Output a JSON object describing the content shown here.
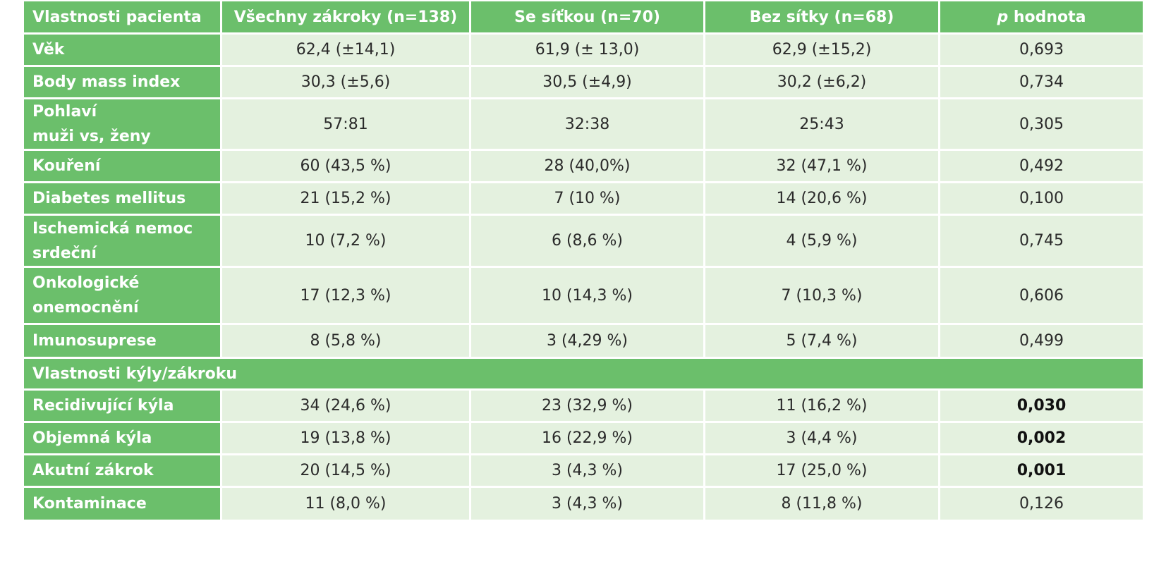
{
  "table": {
    "headers": [
      "Vlastnosti pacienta",
      "Všechny zákroky (n=138)",
      "Se síťkou (n=70)",
      "Bez sítky (n=68)"
    ],
    "p_header_italic": "p",
    "p_header_rest": " hodnota",
    "rows": [
      {
        "label": [
          "Věk"
        ],
        "cells": [
          "62,4 (±14,1)",
          "61,9 (± 13,0)",
          "62,9 (±15,2)",
          "0,693"
        ],
        "p_bold": false
      },
      {
        "label": [
          "Body mass index"
        ],
        "cells": [
          "30,3 (±5,6)",
          "30,5 (±4,9)",
          "30,2 (±6,2)",
          "0,734"
        ],
        "p_bold": false
      },
      {
        "label": [
          "Pohlaví",
          "muži vs, ženy"
        ],
        "cells": [
          "57:81",
          "32:38",
          "25:43",
          "0,305"
        ],
        "p_bold": false
      },
      {
        "label": [
          "Kouření"
        ],
        "cells": [
          "60 (43,5 %)",
          "28 (40,0%)",
          "32 (47,1 %)",
          "0,492"
        ],
        "p_bold": false
      },
      {
        "label": [
          "Diabetes mellitus"
        ],
        "cells": [
          "21 (15,2 %)",
          "7 (10  %)",
          "14 (20,6 %)",
          "0,100"
        ],
        "p_bold": false
      },
      {
        "label": [
          "Ischemická nemoc",
          "srdeční"
        ],
        "cells": [
          "10 (7,2 %)",
          "6 (8,6 %)",
          "4 (5,9 %)",
          "0,745"
        ],
        "p_bold": false
      },
      {
        "label": [
          "Onkologické",
          "onemocnění"
        ],
        "cells": [
          "17 (12,3 %)",
          "10 (14,3 %)",
          "7 (10,3 %)",
          "0,606"
        ],
        "p_bold": false
      },
      {
        "label": [
          "Imunosuprese"
        ],
        "cells": [
          "8 (5,8 %)",
          "3 (4,29 %)",
          "5 (7,4 %)",
          "0,499"
        ],
        "p_bold": false
      }
    ],
    "section_label": "Vlastnosti kýly/zákroku",
    "rows2": [
      {
        "label": [
          "Recidivující kýla"
        ],
        "cells": [
          "34 (24,6 %)",
          "23 (32,9 %)",
          "11 (16,2 %)",
          "0,030"
        ],
        "p_bold": true
      },
      {
        "label": [
          "Objemná kýla"
        ],
        "cells": [
          "19 (13,8 %)",
          "16 (22,9 %)",
          "3 (4,4 %)",
          "0,002"
        ],
        "p_bold": true
      },
      {
        "label": [
          "Akutní zákrok"
        ],
        "cells": [
          "20 (14,5 %)",
          "3 (4,3 %)",
          "17 (25,0 %)",
          "0,001"
        ],
        "p_bold": true
      },
      {
        "label": [
          "Kontaminace"
        ],
        "cells": [
          "11 (8,0 %)",
          "3 (4,3 %)",
          "8 (11,8 %)",
          "0,126"
        ],
        "p_bold": false
      }
    ]
  }
}
